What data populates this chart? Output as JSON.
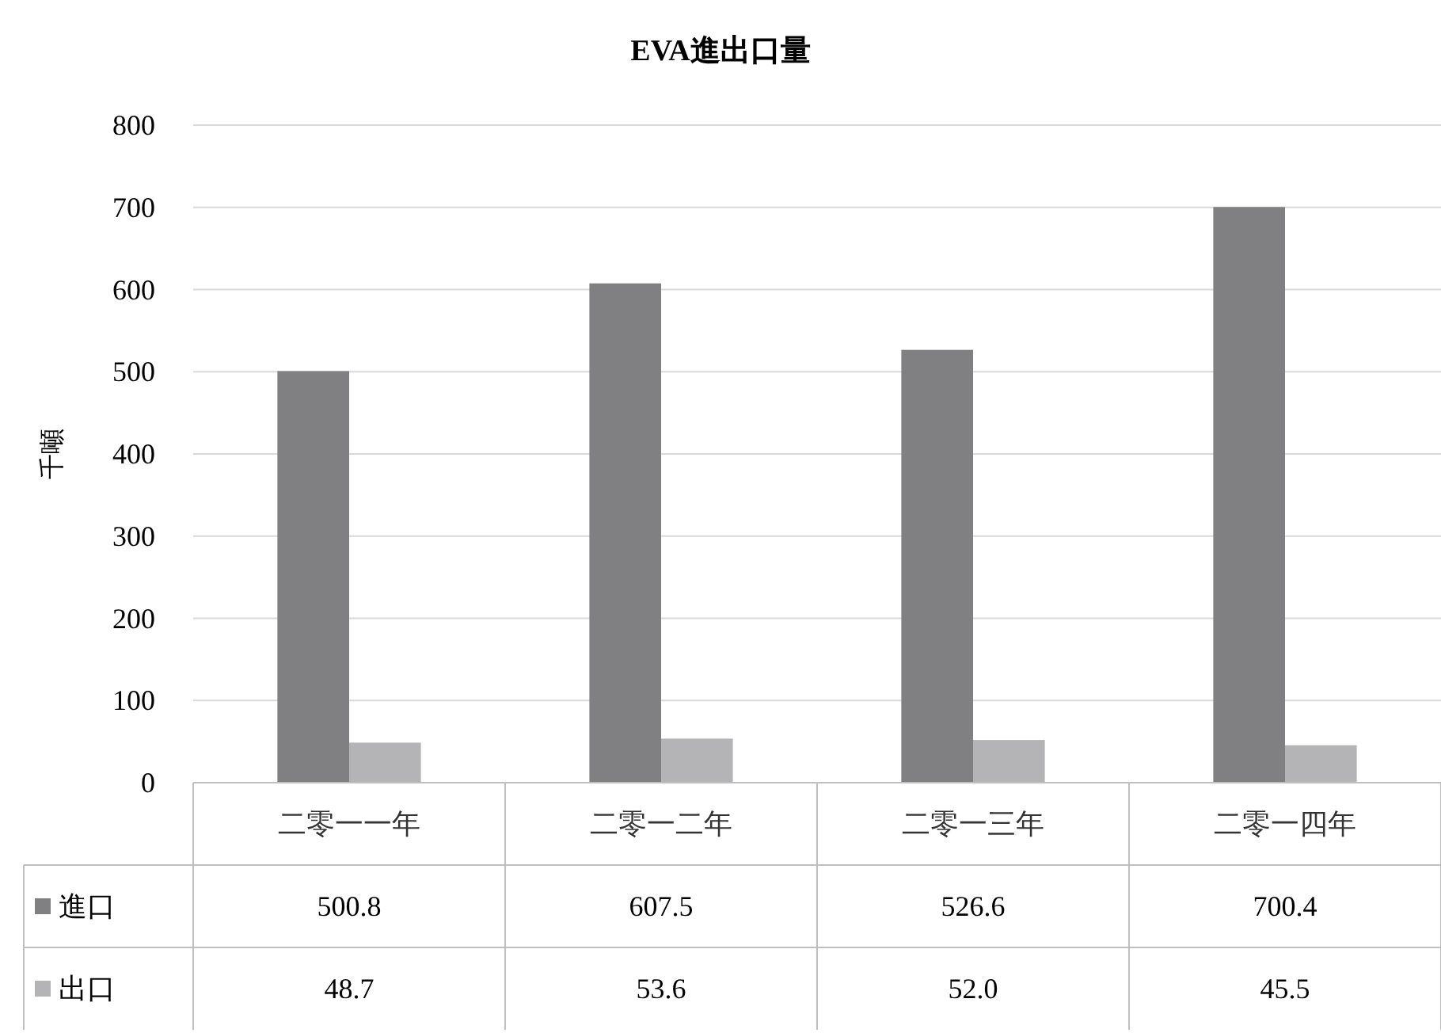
{
  "chart_data": {
    "type": "bar",
    "title": "EVA進出口量",
    "ylabel": "千噸",
    "categories": [
      "二零一一年",
      "二零一二年",
      "二零一三年",
      "二零一四年"
    ],
    "series": [
      {
        "name": "進口",
        "color": "#808083",
        "values": [
          500.8,
          607.5,
          526.6,
          700.4
        ],
        "value_labels": [
          "500.8",
          "607.5",
          "526.6",
          "700.4"
        ]
      },
      {
        "name": "出口",
        "color": "#b4b4b6",
        "values": [
          48.7,
          53.6,
          52.0,
          45.5
        ],
        "value_labels": [
          "48.7",
          "53.6",
          "52.0",
          "45.5"
        ]
      }
    ],
    "ylim": [
      0,
      800
    ],
    "yticks": [
      0,
      100,
      200,
      300,
      400,
      500,
      600,
      700,
      800
    ],
    "grid": "y",
    "legend": "bottom left"
  }
}
